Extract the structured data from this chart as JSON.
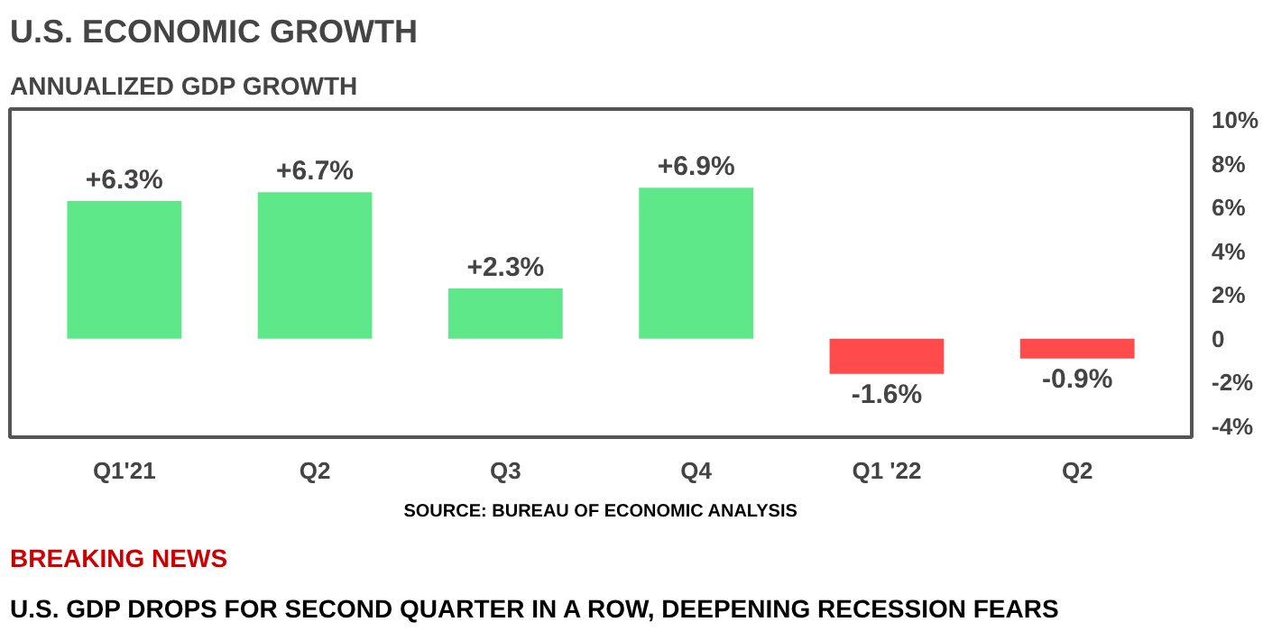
{
  "chart_data": {
    "type": "bar",
    "title": "U.S. ECONOMIC GROWTH",
    "subtitle": "ANNUALIZED GDP GROWTH",
    "categories": [
      "Q1'21",
      "Q2",
      "Q3",
      "Q4",
      "Q1 '22",
      "Q2"
    ],
    "values": [
      6.3,
      6.7,
      2.3,
      6.9,
      -1.6,
      -0.9
    ],
    "value_labels": [
      "+6.3%",
      "+6.7%",
      "+2.3%",
      "+6.9%",
      "-1.6%",
      "-0.9%"
    ],
    "colors": [
      "#5ee88a",
      "#5ee88a",
      "#5ee88a",
      "#5ee88a",
      "#ff4b4b",
      "#ff4b4b"
    ],
    "ylim": [
      -4.5,
      10.5
    ],
    "yticks": [
      {
        "value": 10,
        "label": "10%"
      },
      {
        "value": 8,
        "label": "8%"
      },
      {
        "value": 6,
        "label": "6%"
      },
      {
        "value": 4,
        "label": "4%"
      },
      {
        "value": 2,
        "label": "2%"
      },
      {
        "value": 0,
        "label": "0"
      },
      {
        "value": -2,
        "label": "-2%"
      },
      {
        "value": -4,
        "label": "-4%"
      }
    ],
    "grid": false,
    "annotations": [
      "SOURCE: BUREAU OF ECONOMIC ANALYSIS",
      "BREAKING NEWS",
      "U.S. GDP DROPS FOR SECOND QUARTER IN A ROW, DEEPENING RECESSION FEARS"
    ]
  }
}
